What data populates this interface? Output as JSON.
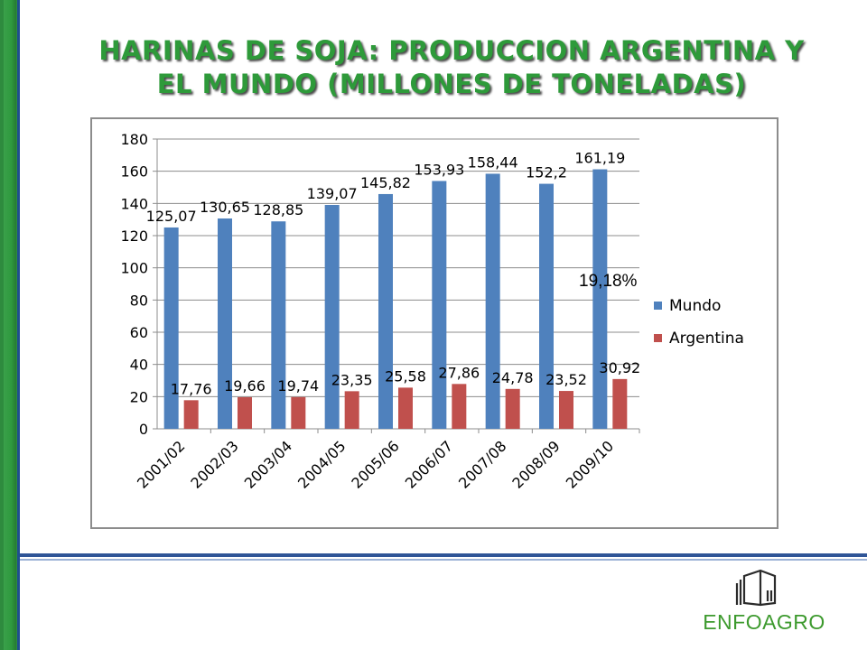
{
  "slide": {
    "title_line1": "HARINAS DE SOJA: PRODUCCION ARGENTINA Y",
    "title_line2": "EL MUNDO (MILLONES DE TONELADAS)",
    "annotation": "19,18%",
    "logo_text": "ENFOAGRO",
    "logo_icon": "building-icon"
  },
  "colors": {
    "mundo": "#4f81bd",
    "argentina": "#c0504d",
    "title": "#2e9a3a",
    "accent_bar": "#2e8b3e",
    "rule": "#2f5597"
  },
  "chart_data": {
    "type": "bar",
    "title": "",
    "xlabel": "",
    "ylabel": "",
    "categories": [
      "2001/02",
      "2002/03",
      "2003/04",
      "2004/05",
      "2005/06",
      "2006/07",
      "2007/08",
      "2008/09",
      "2009/10"
    ],
    "series": [
      {
        "name": "Mundo",
        "values": [
          125.07,
          130.65,
          128.85,
          139.07,
          145.82,
          153.93,
          158.44,
          152.2,
          161.19
        ],
        "labels": [
          "125,07",
          "130,65",
          "128,85",
          "139,07",
          "145,82",
          "153,93",
          "158,44",
          "152,2",
          "161,19"
        ]
      },
      {
        "name": "Argentina",
        "values": [
          17.76,
          19.66,
          19.74,
          23.35,
          25.58,
          27.86,
          24.78,
          23.52,
          30.92
        ],
        "labels": [
          "17,76",
          "19,66",
          "19,74",
          "23,35",
          "25,58",
          "27,86",
          "24,78",
          "23,52",
          "30,92"
        ]
      }
    ],
    "ylim": [
      0,
      180
    ],
    "yticks": [
      0,
      20,
      40,
      60,
      80,
      100,
      120,
      140,
      160,
      180
    ],
    "grid": true,
    "legend": "right"
  }
}
